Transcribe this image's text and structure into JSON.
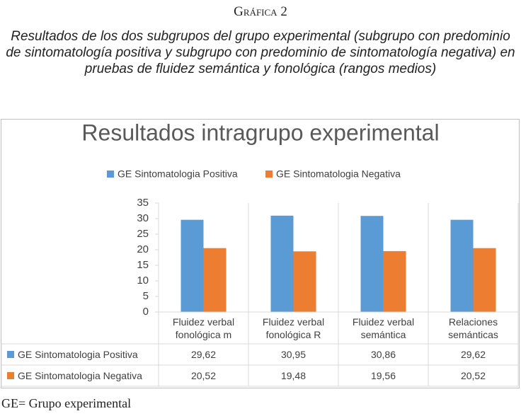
{
  "figure_label": "Gráfica 2",
  "caption": "Resultados de los dos subgrupos del grupo experimental (subgrupo con predominio de sintomatología positiva y subgrupo con predominio de sintomatología negativa) en pruebas de fluidez semántica y fonológica (rangos medios)",
  "footnote": "GE= Grupo experimental",
  "chart_data": {
    "type": "bar",
    "title": "Resultados intragrupo experimental",
    "categories": [
      "Fluidez verbal fonológica m",
      "Fluidez verbal fonológica R",
      "Fluidez verbal semántica",
      "Relaciones semánticas"
    ],
    "series": [
      {
        "name": "GE Sintomatologia Positiva",
        "color": "#5b9bd5",
        "values": [
          29.62,
          30.95,
          30.86,
          29.62
        ],
        "value_labels": [
          "29,62",
          "30,95",
          "30,86",
          "29,62"
        ]
      },
      {
        "name": "GE Sintomatologia Negativa",
        "color": "#ed7d31",
        "values": [
          20.52,
          19.48,
          19.56,
          20.52
        ],
        "value_labels": [
          "20,52",
          "19,48",
          "19,56",
          "20,52"
        ]
      }
    ],
    "ylim": [
      0,
      35
    ],
    "yticks": [
      0,
      5,
      10,
      15,
      20,
      25,
      30,
      35
    ]
  }
}
